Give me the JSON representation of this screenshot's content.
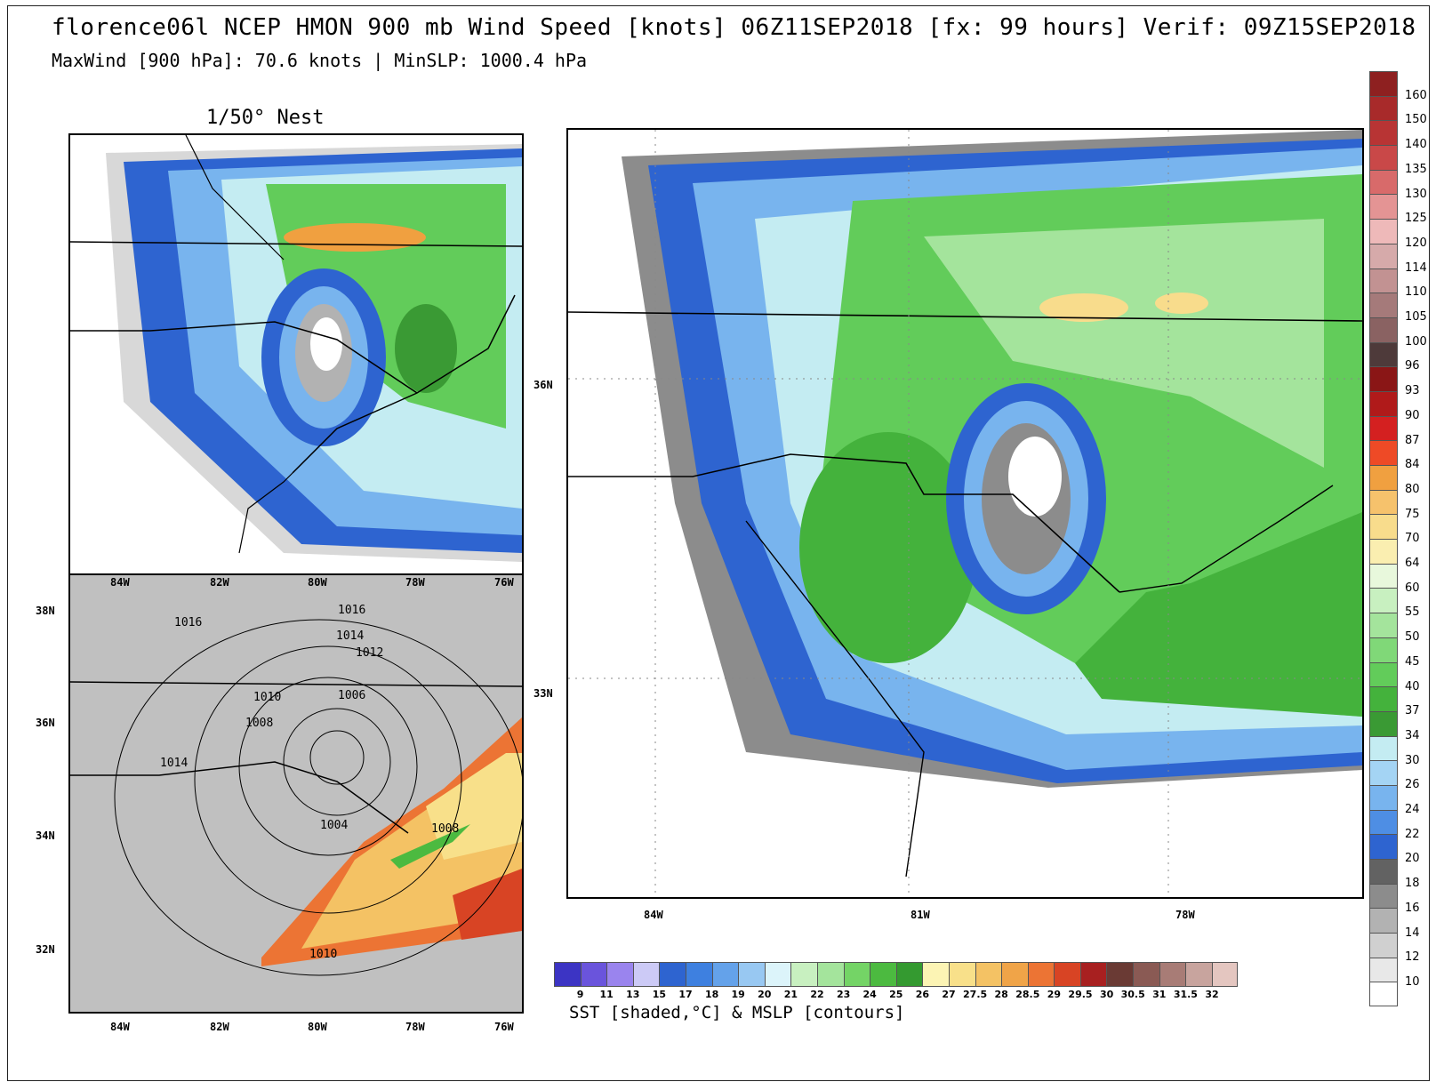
{
  "header": {
    "title": "florence06l NCEP HMON 900 mb Wind Speed [knots] 06Z11SEP2018 [fx: 99 hours] Verif: 09Z15SEP2018",
    "subtitle": "MaxWind [900 hPa]: 70.6 knots | MinSLP: 1000.4 hPa"
  },
  "nest_panel": {
    "title": "1/50° Nest"
  },
  "sst_panel": {
    "title": "SST [shaded,°C] & MSLP [contours]",
    "x_ticks_top": [
      "84W",
      "82W",
      "80W",
      "78W",
      "76W"
    ],
    "x_ticks_bottom": [
      "84W",
      "82W",
      "80W",
      "78W",
      "76W"
    ],
    "y_ticks": [
      "38N",
      "36N",
      "34N",
      "32N"
    ],
    "isobars": [
      "1016",
      "1016",
      "1014",
      "1012",
      "1010",
      "1006",
      "1008",
      "1014",
      "1004",
      "1008",
      "1010"
    ]
  },
  "main_panel": {
    "x_ticks": [
      "84W",
      "81W",
      "78W"
    ],
    "y_ticks": [
      "36N",
      "33N"
    ]
  },
  "wind_colorbar": {
    "labels": [
      "160",
      "150",
      "140",
      "135",
      "130",
      "125",
      "120",
      "114",
      "110",
      "105",
      "100",
      "96",
      "93",
      "90",
      "87",
      "84",
      "80",
      "75",
      "70",
      "64",
      "60",
      "55",
      "50",
      "45",
      "40",
      "37",
      "34",
      "30",
      "26",
      "24",
      "22",
      "20",
      "18",
      "16",
      "14",
      "12",
      "10"
    ],
    "colors": [
      "#8e2020",
      "#a82a2a",
      "#b83434",
      "#c94848",
      "#d86a6a",
      "#e49494",
      "#eeb9b9",
      "#d6aaaa",
      "#c29292",
      "#a57a7a",
      "#8a6262",
      "#4e3a3a",
      "#8a1616",
      "#b01a1a",
      "#d42020",
      "#ee4a26",
      "#f0a040",
      "#f6c26c",
      "#f8dc8c",
      "#faeeb0",
      "#e8f8dc",
      "#c8f0c0",
      "#a4e49c",
      "#80d878",
      "#62cc5a",
      "#44b23c",
      "#3a9a34",
      "#c4ecf2",
      "#a4d4f4",
      "#78b4ee",
      "#4e8ee4",
      "#2e64d0",
      "#626262",
      "#8c8c8c",
      "#b2b2b2",
      "#d0d0d0",
      "#e8e8e8"
    ]
  },
  "sst_colorbar": {
    "labels": [
      "9",
      "11",
      "13",
      "15",
      "17",
      "18",
      "19",
      "20",
      "21",
      "22",
      "23",
      "24",
      "25",
      "26",
      "27",
      "27.5",
      "28",
      "28.5",
      "29",
      "29.5",
      "30",
      "30.5",
      "31",
      "31.5",
      "32"
    ],
    "colors": [
      "#3c34c4",
      "#6a54dc",
      "#9a84ee",
      "#cccaf6",
      "#2e64d0",
      "#3e80e0",
      "#64a2ea",
      "#98c8f2",
      "#dcf4fa",
      "#c8f0c0",
      "#a4e49c",
      "#74d466",
      "#4cba40",
      "#349a30",
      "#fcf4b4",
      "#f8e08a",
      "#f4c264",
      "#f0a448",
      "#ec7434",
      "#d84424",
      "#a82020",
      "#6a3a34",
      "#8a5a54",
      "#a87c76",
      "#c8a49e",
      "#e4c6c0"
    ]
  }
}
